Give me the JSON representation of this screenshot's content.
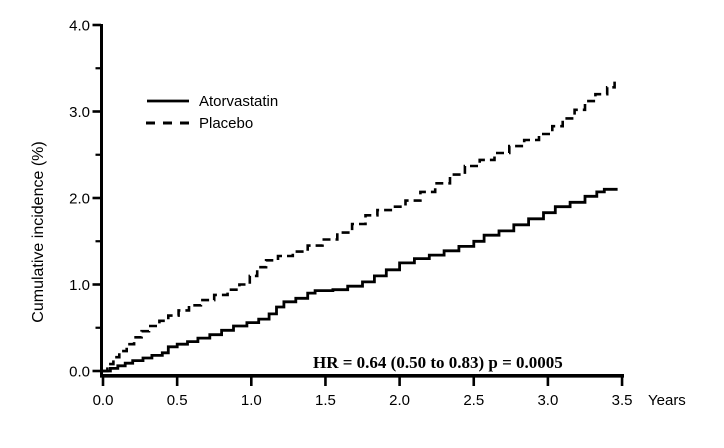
{
  "chart_data": {
    "type": "line",
    "subtype": "cumulative-incidence-step",
    "title": "",
    "ylabel": "Cumulative incidence (%)",
    "xlabel": "Years",
    "annotation": "HR = 0.64 (0.50 to 0.83) p = 0.0005",
    "xlim": [
      0,
      3.5
    ],
    "ylim": [
      0,
      4.0
    ],
    "grid": false,
    "legend_position": "upper-left-inside",
    "colors": {
      "line": "#000000",
      "background": "#ffffff"
    },
    "x_ticks": [
      {
        "value": 0.0,
        "label": "0.0"
      },
      {
        "value": 0.5,
        "label": "0.5"
      },
      {
        "value": 1.0,
        "label": "1.0"
      },
      {
        "value": 1.5,
        "label": "1.5"
      },
      {
        "value": 2.0,
        "label": "2.0"
      },
      {
        "value": 2.5,
        "label": "2.5"
      },
      {
        "value": 3.0,
        "label": "3.0"
      },
      {
        "value": 3.5,
        "label": "3.5"
      }
    ],
    "y_ticks": [
      {
        "value": 0.0,
        "label": "0.0"
      },
      {
        "value": 1.0,
        "label": "1.0"
      },
      {
        "value": 2.0,
        "label": "2.0"
      },
      {
        "value": 3.0,
        "label": "3.0"
      },
      {
        "value": 4.0,
        "label": "4.0"
      }
    ],
    "y_minor_ticks": [
      0.5,
      1.5,
      2.5,
      3.5
    ],
    "series": [
      {
        "name": "Atorvastatin",
        "style": "solid",
        "points": [
          [
            0.0,
            0.0
          ],
          [
            0.05,
            0.03
          ],
          [
            0.1,
            0.06
          ],
          [
            0.15,
            0.09
          ],
          [
            0.2,
            0.12
          ],
          [
            0.27,
            0.15
          ],
          [
            0.33,
            0.18
          ],
          [
            0.4,
            0.21
          ],
          [
            0.44,
            0.28
          ],
          [
            0.5,
            0.31
          ],
          [
            0.57,
            0.34
          ],
          [
            0.64,
            0.38
          ],
          [
            0.72,
            0.42
          ],
          [
            0.8,
            0.47
          ],
          [
            0.88,
            0.52
          ],
          [
            0.97,
            0.56
          ],
          [
            1.05,
            0.6
          ],
          [
            1.12,
            0.66
          ],
          [
            1.17,
            0.74
          ],
          [
            1.22,
            0.8
          ],
          [
            1.3,
            0.84
          ],
          [
            1.38,
            0.9
          ],
          [
            1.43,
            0.93
          ],
          [
            1.55,
            0.94
          ],
          [
            1.65,
            0.98
          ],
          [
            1.75,
            1.03
          ],
          [
            1.83,
            1.1
          ],
          [
            1.91,
            1.17
          ],
          [
            2.0,
            1.25
          ],
          [
            2.1,
            1.3
          ],
          [
            2.2,
            1.34
          ],
          [
            2.3,
            1.39
          ],
          [
            2.4,
            1.44
          ],
          [
            2.5,
            1.5
          ],
          [
            2.57,
            1.57
          ],
          [
            2.67,
            1.62
          ],
          [
            2.77,
            1.69
          ],
          [
            2.87,
            1.76
          ],
          [
            2.97,
            1.83
          ],
          [
            3.05,
            1.9
          ],
          [
            3.15,
            1.95
          ],
          [
            3.25,
            2.02
          ],
          [
            3.33,
            2.07
          ],
          [
            3.38,
            2.1
          ],
          [
            3.47,
            2.1
          ]
        ]
      },
      {
        "name": "Placebo",
        "style": "dashed",
        "points": [
          [
            0.0,
            0.0
          ],
          [
            0.03,
            0.08
          ],
          [
            0.07,
            0.16
          ],
          [
            0.11,
            0.23
          ],
          [
            0.16,
            0.31
          ],
          [
            0.21,
            0.39
          ],
          [
            0.26,
            0.46
          ],
          [
            0.31,
            0.52
          ],
          [
            0.38,
            0.58
          ],
          [
            0.44,
            0.64
          ],
          [
            0.51,
            0.7
          ],
          [
            0.58,
            0.76
          ],
          [
            0.66,
            0.82
          ],
          [
            0.75,
            0.88
          ],
          [
            0.84,
            0.94
          ],
          [
            0.92,
            1.0
          ],
          [
            0.99,
            1.1
          ],
          [
            1.04,
            1.2
          ],
          [
            1.1,
            1.28
          ],
          [
            1.18,
            1.33
          ],
          [
            1.28,
            1.38
          ],
          [
            1.38,
            1.45
          ],
          [
            1.48,
            1.52
          ],
          [
            1.58,
            1.6
          ],
          [
            1.68,
            1.7
          ],
          [
            1.77,
            1.8
          ],
          [
            1.85,
            1.86
          ],
          [
            1.95,
            1.9
          ],
          [
            2.04,
            1.97
          ],
          [
            2.14,
            2.07
          ],
          [
            2.24,
            2.17
          ],
          [
            2.34,
            2.27
          ],
          [
            2.44,
            2.37
          ],
          [
            2.54,
            2.44
          ],
          [
            2.64,
            2.52
          ],
          [
            2.74,
            2.6
          ],
          [
            2.84,
            2.67
          ],
          [
            2.94,
            2.74
          ],
          [
            3.03,
            2.83
          ],
          [
            3.1,
            2.92
          ],
          [
            3.18,
            3.02
          ],
          [
            3.25,
            3.12
          ],
          [
            3.32,
            3.2
          ],
          [
            3.4,
            3.28
          ],
          [
            3.45,
            3.35
          ]
        ]
      }
    ]
  }
}
